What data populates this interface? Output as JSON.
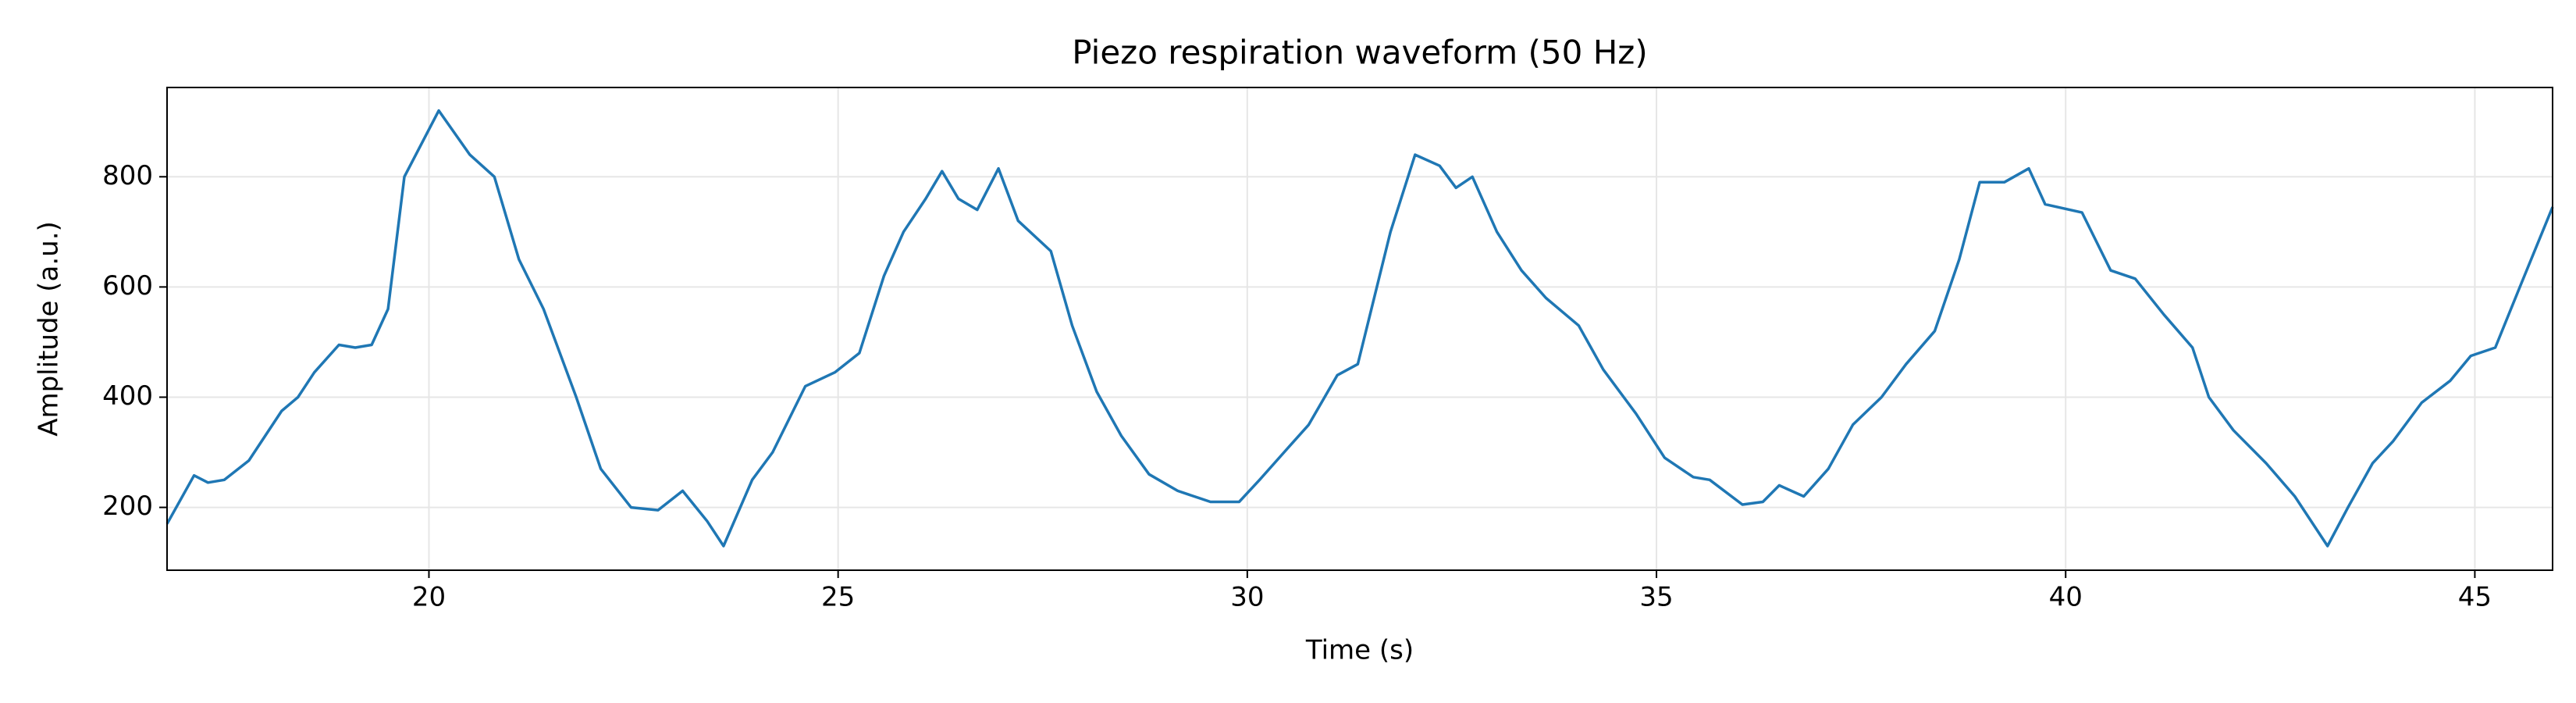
{
  "chart_data": {
    "type": "line",
    "title": "Piezo respiration waveform (50 Hz)",
    "x_label": "Time (s)",
    "y_label": "Amplitude (a.u.)",
    "x": [
      16.8,
      17.13,
      17.3,
      17.5,
      17.8,
      18.0,
      18.2,
      18.4,
      18.6,
      18.9,
      19.1,
      19.3,
      19.5,
      19.7,
      20.12,
      20.5,
      20.8,
      21.1,
      21.4,
      21.8,
      22.1,
      22.47,
      22.8,
      23.1,
      23.4,
      23.6,
      23.95,
      24.2,
      24.6,
      24.96,
      25.26,
      25.56,
      25.8,
      26.07,
      26.27,
      26.47,
      26.7,
      26.96,
      27.2,
      27.6,
      27.86,
      28.16,
      28.46,
      28.8,
      29.15,
      29.55,
      29.9,
      30.15,
      30.45,
      30.75,
      31.1,
      31.35,
      31.75,
      32.05,
      32.35,
      32.55,
      32.75,
      33.05,
      33.35,
      33.65,
      34.05,
      34.35,
      34.75,
      35.1,
      35.45,
      35.65,
      36.05,
      36.3,
      36.5,
      36.8,
      37.1,
      37.4,
      37.75,
      38.05,
      38.4,
      38.7,
      38.95,
      39.25,
      39.55,
      39.75,
      40.2,
      40.55,
      40.85,
      41.2,
      41.55,
      41.75,
      42.05,
      42.45,
      42.8,
      43.2,
      43.45,
      43.75,
      44.0,
      44.35,
      44.7,
      44.95,
      45.25,
      45.55,
      45.95
    ],
    "series": [
      {
        "name": "Piezo",
        "color": "#1f77b4",
        "values": [
          170,
          258,
          245,
          250,
          285,
          330,
          375,
          400,
          445,
          495,
          490,
          495,
          560,
          800,
          920,
          840,
          800,
          650,
          560,
          400,
          270,
          200,
          195,
          230,
          175,
          130,
          250,
          300,
          420,
          445,
          480,
          620,
          700,
          760,
          810,
          760,
          740,
          815,
          720,
          665,
          530,
          410,
          330,
          260,
          230,
          210,
          210,
          250,
          300,
          350,
          440,
          460,
          700,
          840,
          820,
          780,
          800,
          700,
          630,
          580,
          530,
          450,
          370,
          290,
          255,
          250,
          205,
          210,
          240,
          220,
          270,
          350,
          400,
          460,
          520,
          650,
          790,
          790,
          815,
          750,
          735,
          630,
          615,
          550,
          490,
          400,
          340,
          280,
          220,
          130,
          200,
          280,
          320,
          390,
          430,
          475,
          490,
          600,
          745
        ]
      }
    ],
    "xlim": [
      16.8,
      45.95
    ],
    "ylim": [
      86,
      962
    ],
    "xticks": [
      20,
      25,
      30,
      35,
      40,
      45
    ],
    "yticks": [
      200,
      400,
      600,
      800
    ],
    "grid": true
  }
}
